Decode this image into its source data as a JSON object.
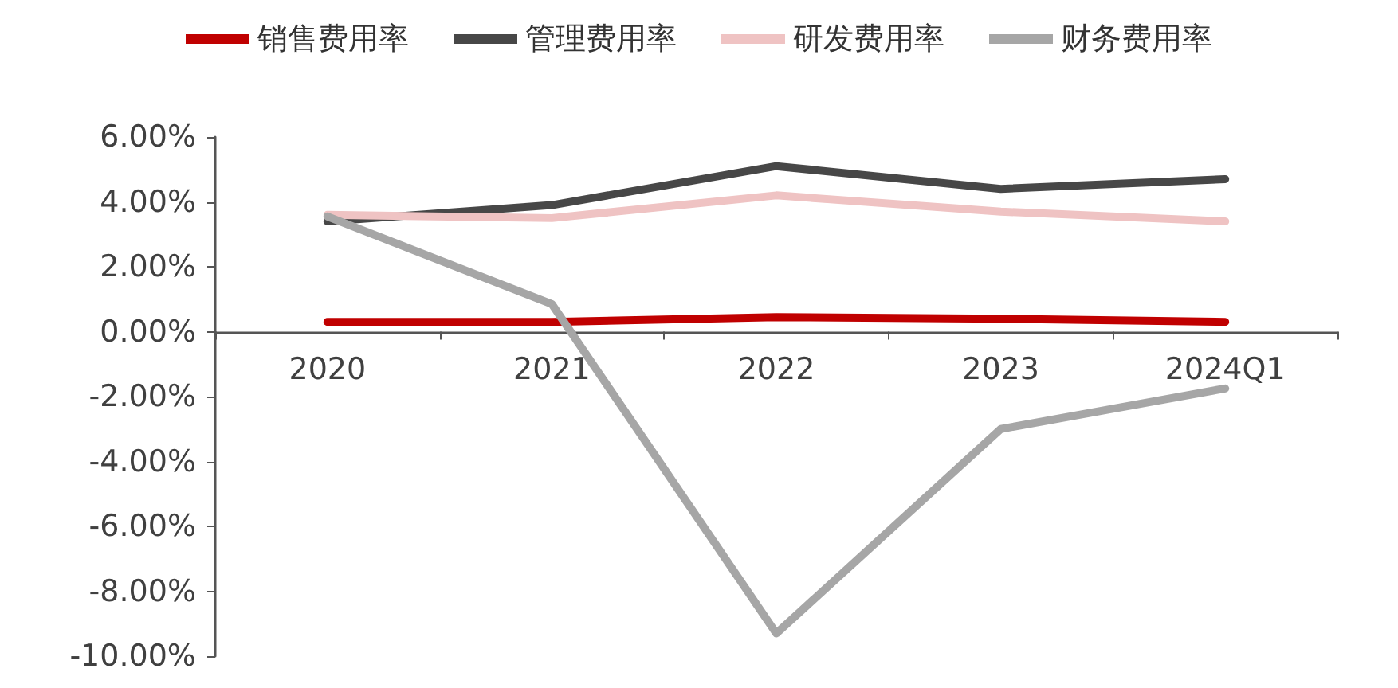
{
  "chart_data": {
    "type": "line",
    "categories": [
      "2020",
      "2021",
      "2022",
      "2023",
      "2024Q1"
    ],
    "series": [
      {
        "name": "销售费用率",
        "color": "#c00000",
        "values": [
          0.3,
          0.3,
          0.45,
          0.4,
          0.3
        ]
      },
      {
        "name": "管理费用率",
        "color": "#474747",
        "values": [
          3.4,
          3.9,
          5.1,
          4.4,
          4.7
        ]
      },
      {
        "name": "研发费用率",
        "color": "#efc3c3",
        "values": [
          3.6,
          3.5,
          4.2,
          3.7,
          3.4
        ]
      },
      {
        "name": "财务费用率",
        "color": "#a6a6a6",
        "values": [
          3.55,
          0.85,
          -9.3,
          -3.0,
          -1.75
        ]
      }
    ],
    "ylim": [
      -10,
      6
    ],
    "yticks": [
      {
        "value": -10,
        "label": "-10.00%"
      },
      {
        "value": -8,
        "label": "-8.00%"
      },
      {
        "value": -6,
        "label": "-6.00%"
      },
      {
        "value": -4,
        "label": "-4.00%"
      },
      {
        "value": -2,
        "label": "-2.00%"
      },
      {
        "value": 0,
        "label": "0.00%"
      },
      {
        "value": 2,
        "label": "2.00%"
      },
      {
        "value": 4,
        "label": "4.00%"
      },
      {
        "value": 6,
        "label": "6.00%"
      }
    ],
    "grid": false,
    "legend": "top",
    "marker": "none",
    "line_style": "solid"
  }
}
